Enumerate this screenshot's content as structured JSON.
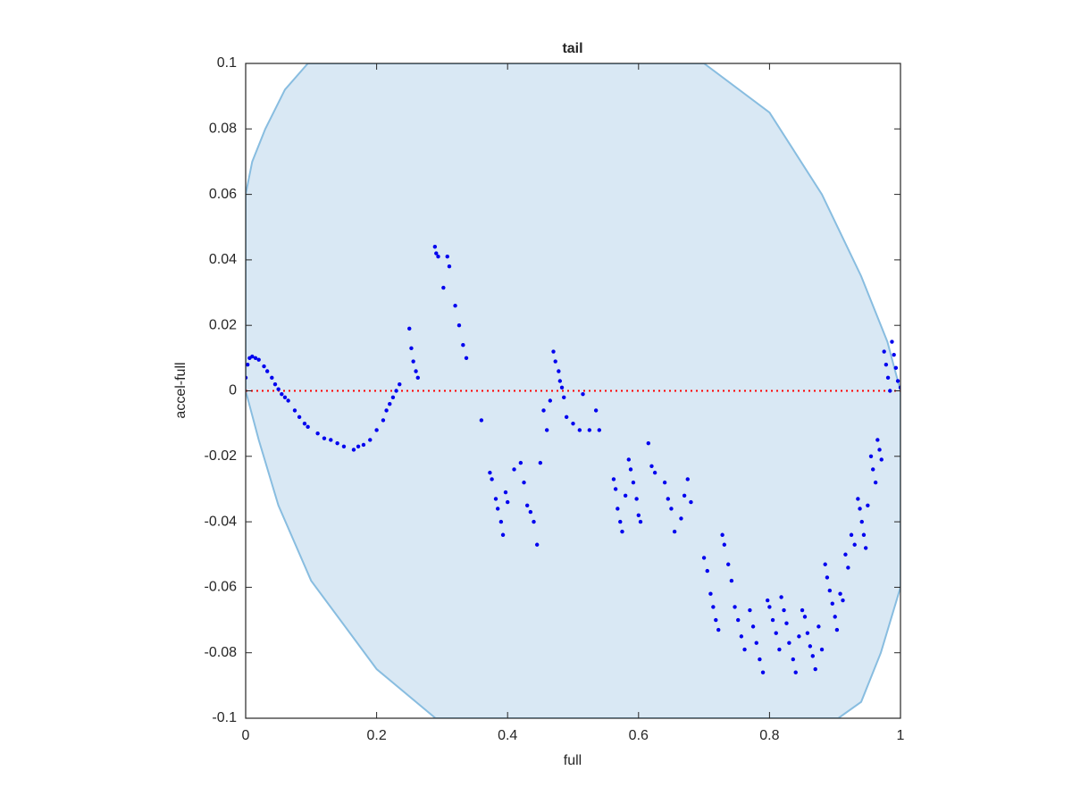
{
  "chart_data": {
    "type": "scatter",
    "title": "tail",
    "xlabel": "full",
    "ylabel": "accel-full",
    "xlim": [
      0,
      1
    ],
    "ylim": [
      -0.1,
      0.1
    ],
    "xticks": [
      0,
      0.2,
      0.4,
      0.6,
      0.8,
      1
    ],
    "yticks": [
      -0.1,
      -0.08,
      -0.06,
      -0.04,
      -0.02,
      0,
      0.02,
      0.04,
      0.06,
      0.08,
      0.1
    ],
    "region": {
      "color": "#d9e8f4",
      "edge_color": "#88bde0",
      "x": [
        0,
        0.01,
        0.03,
        0.06,
        0.095,
        0.7,
        0.8,
        0.88,
        0.94,
        0.98,
        1,
        1,
        0.97,
        0.94,
        0.905,
        0.29,
        0.2,
        0.1,
        0.05,
        0.02,
        0
      ],
      "y": [
        0.06,
        0.07,
        0.08,
        0.092,
        0.1,
        0.1,
        0.085,
        0.06,
        0.035,
        0.015,
        0,
        -0.06,
        -0.08,
        -0.095,
        -0.1,
        -0.1,
        -0.085,
        -0.058,
        -0.035,
        -0.015,
        0
      ]
    },
    "reference_line": {
      "y": 0,
      "color": "#ff0000"
    },
    "points": {
      "color": "#0000ee",
      "x": [
        0,
        0.003,
        0.006,
        0.01,
        0.015,
        0.02,
        0.028,
        0.033,
        0.04,
        0.045,
        0.05,
        0.055,
        0.06,
        0.065,
        0.075,
        0.082,
        0.09,
        0.095,
        0.11,
        0.12,
        0.13,
        0.14,
        0.15,
        0.165,
        0.172,
        0.18,
        0.19,
        0.2,
        0.21,
        0.215,
        0.22,
        0.225,
        0.23,
        0.235,
        0.25,
        0.253,
        0.256,
        0.26,
        0.263,
        0.289,
        0.291,
        0.294,
        0.302,
        0.308,
        0.311,
        0.32,
        0.326,
        0.332,
        0.337,
        0.36,
        0.373,
        0.376,
        0.382,
        0.385,
        0.39,
        0.393,
        0.397,
        0.4,
        0.41,
        0.42,
        0.425,
        0.43,
        0.435,
        0.44,
        0.445,
        0.45,
        0.455,
        0.46,
        0.465,
        0.47,
        0.473,
        0.478,
        0.48,
        0.483,
        0.486,
        0.49,
        0.5,
        0.51,
        0.515,
        0.525,
        0.535,
        0.54,
        0.562,
        0.565,
        0.568,
        0.572,
        0.575,
        0.58,
        0.585,
        0.588,
        0.592,
        0.597,
        0.6,
        0.603,
        0.615,
        0.62,
        0.625,
        0.64,
        0.645,
        0.65,
        0.655,
        0.665,
        0.67,
        0.675,
        0.68,
        0.7,
        0.705,
        0.71,
        0.714,
        0.718,
        0.722,
        0.728,
        0.731,
        0.737,
        0.742,
        0.747,
        0.752,
        0.757,
        0.762,
        0.77,
        0.775,
        0.78,
        0.785,
        0.79,
        0.797,
        0.8,
        0.805,
        0.81,
        0.815,
        0.818,
        0.822,
        0.826,
        0.83,
        0.836,
        0.84,
        0.845,
        0.85,
        0.854,
        0.858,
        0.862,
        0.866,
        0.87,
        0.875,
        0.88,
        0.885,
        0.888,
        0.892,
        0.896,
        0.9,
        0.903,
        0.908,
        0.912,
        0.916,
        0.92,
        0.925,
        0.93,
        0.935,
        0.938,
        0.941,
        0.944,
        0.947,
        0.95,
        0.955,
        0.958,
        0.962,
        0.965,
        0.968,
        0.971,
        0.975,
        0.978,
        0.981,
        0.984,
        0.987,
        0.99,
        0.993,
        0.996,
        1
      ],
      "y": [
        0.004,
        0.008,
        0.01,
        0.0105,
        0.01,
        0.0095,
        0.0075,
        0.006,
        0.004,
        0.002,
        0.0005,
        -0.001,
        -0.002,
        -0.003,
        -0.006,
        -0.008,
        -0.01,
        -0.011,
        -0.013,
        -0.0145,
        -0.015,
        -0.016,
        -0.017,
        -0.018,
        -0.017,
        -0.0165,
        -0.015,
        -0.012,
        -0.009,
        -0.006,
        -0.004,
        -0.002,
        0,
        0.002,
        0.019,
        0.013,
        0.009,
        0.006,
        0.004,
        0.044,
        0.042,
        0.041,
        0.0315,
        0.041,
        0.038,
        0.026,
        0.02,
        0.014,
        0.01,
        -0.009,
        -0.025,
        -0.027,
        -0.033,
        -0.036,
        -0.04,
        -0.044,
        -0.031,
        -0.034,
        -0.024,
        -0.022,
        -0.028,
        -0.035,
        -0.037,
        -0.04,
        -0.047,
        -0.022,
        -0.006,
        -0.012,
        -0.003,
        0.012,
        0.009,
        0.006,
        0.003,
        0.001,
        -0.002,
        -0.008,
        -0.01,
        -0.012,
        -0.001,
        -0.012,
        -0.006,
        -0.012,
        -0.027,
        -0.03,
        -0.036,
        -0.04,
        -0.043,
        -0.032,
        -0.021,
        -0.024,
        -0.028,
        -0.033,
        -0.038,
        -0.04,
        -0.016,
        -0.023,
        -0.025,
        -0.028,
        -0.033,
        -0.036,
        -0.043,
        -0.039,
        -0.032,
        -0.027,
        -0.034,
        -0.051,
        -0.055,
        -0.062,
        -0.066,
        -0.07,
        -0.073,
        -0.044,
        -0.047,
        -0.053,
        -0.058,
        -0.066,
        -0.07,
        -0.075,
        -0.079,
        -0.067,
        -0.072,
        -0.077,
        -0.082,
        -0.086,
        -0.064,
        -0.066,
        -0.07,
        -0.074,
        -0.079,
        -0.063,
        -0.067,
        -0.071,
        -0.077,
        -0.082,
        -0.086,
        -0.075,
        -0.067,
        -0.069,
        -0.074,
        -0.078,
        -0.081,
        -0.085,
        -0.072,
        -0.079,
        -0.053,
        -0.057,
        -0.061,
        -0.065,
        -0.069,
        -0.073,
        -0.062,
        -0.064,
        -0.05,
        -0.054,
        -0.044,
        -0.047,
        -0.033,
        -0.036,
        -0.04,
        -0.044,
        -0.048,
        -0.035,
        -0.02,
        -0.024,
        -0.028,
        -0.015,
        -0.018,
        -0.021,
        0.012,
        0.008,
        0.004,
        0,
        0.015,
        0.011,
        0.007,
        0.003,
        0.001
      ]
    }
  }
}
